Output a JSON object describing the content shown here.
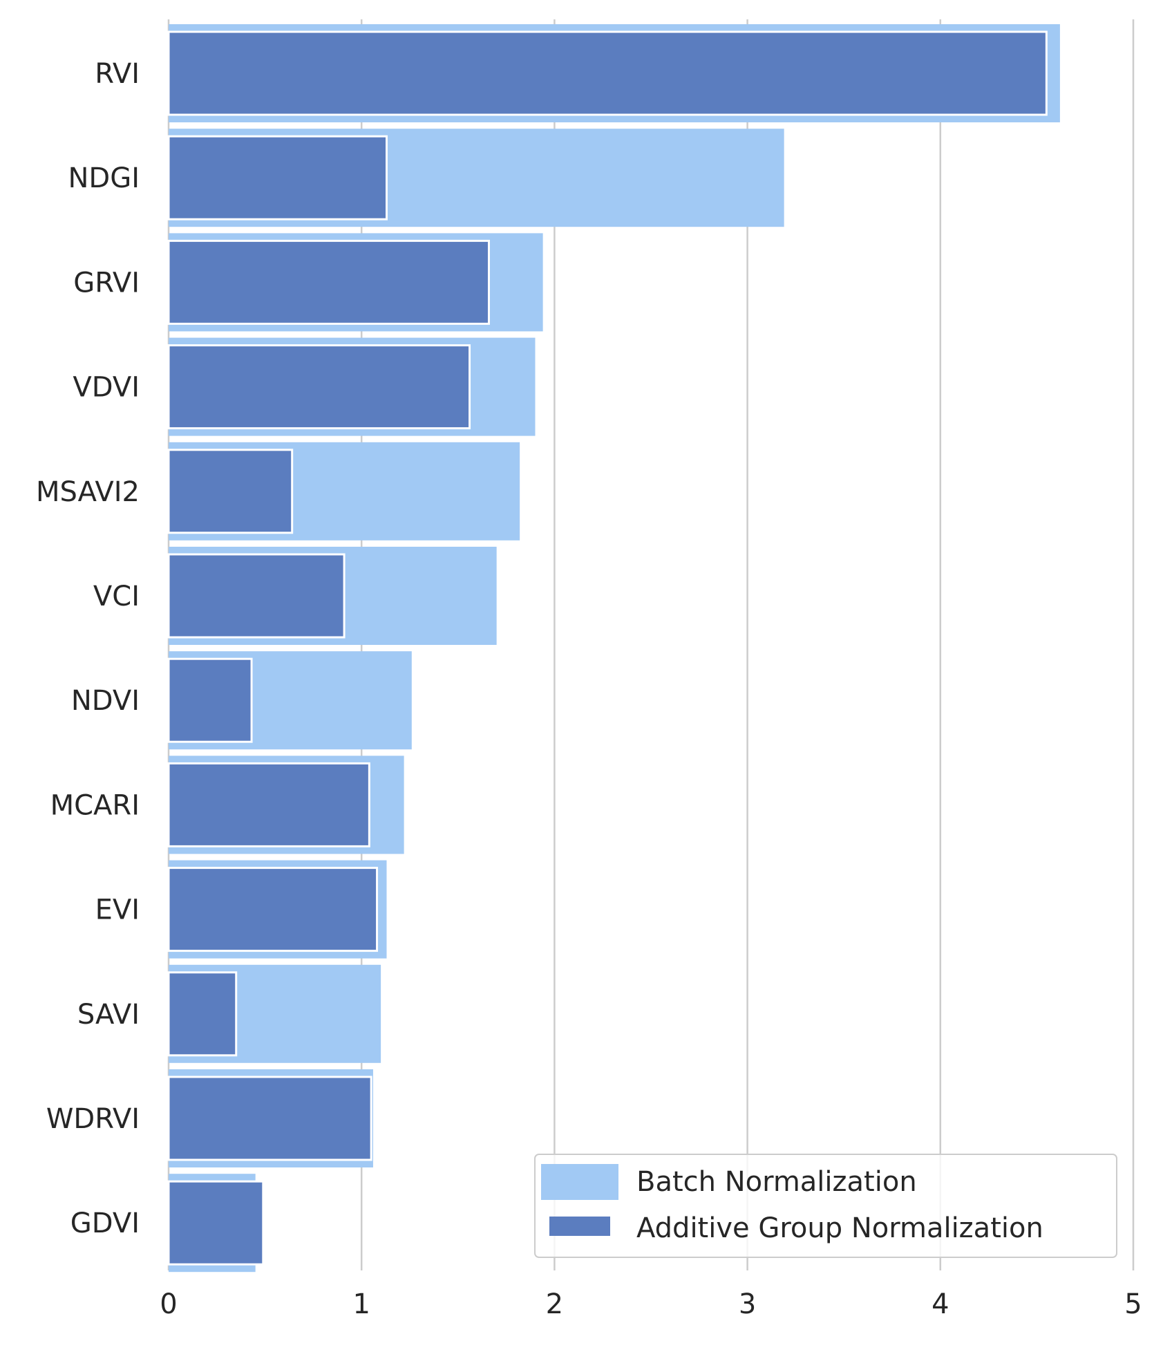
{
  "chart_data": {
    "type": "bar",
    "orientation": "horizontal",
    "categories": [
      "RVI",
      "NDGI",
      "GRVI",
      "VDVI",
      "MSAVI2",
      "VCI",
      "NDVI",
      "MCARI",
      "EVI",
      "SAVI",
      "WDRVI",
      "GDVI"
    ],
    "series": [
      {
        "name": "Batch Normalization",
        "color": "#a1c9f4",
        "values": [
          4.62,
          3.19,
          1.94,
          1.9,
          1.82,
          1.7,
          1.26,
          1.22,
          1.13,
          1.1,
          1.06,
          0.45
        ]
      },
      {
        "name": "Additive Group Normalization",
        "color": "#5b7dbf",
        "values": [
          4.55,
          1.13,
          1.66,
          1.56,
          0.64,
          0.91,
          0.43,
          1.04,
          1.08,
          0.35,
          1.05,
          0.49
        ]
      }
    ],
    "xlim": [
      0,
      5
    ],
    "xticks": [
      "0",
      "1",
      "2",
      "3",
      "4",
      "5"
    ],
    "grid": true,
    "legend_position": "lower-right"
  }
}
